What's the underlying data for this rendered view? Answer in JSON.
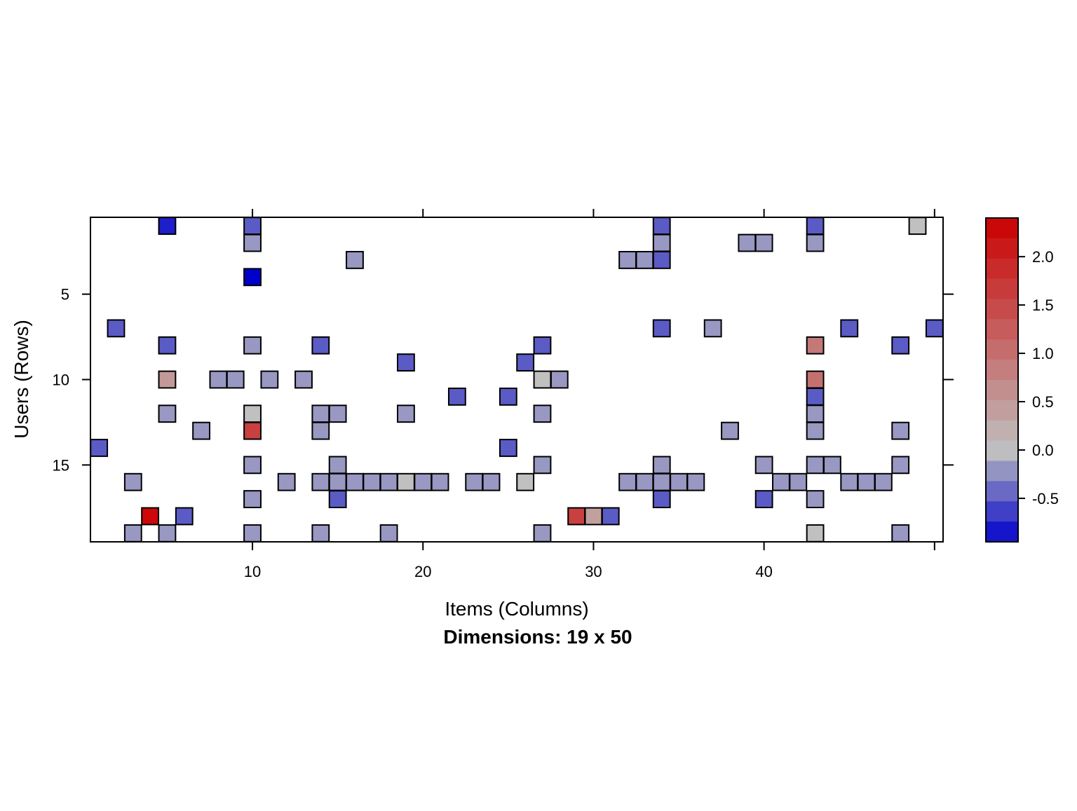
{
  "chart_data": {
    "type": "heatmap",
    "title": "Dimensions: 19 x 50",
    "xlabel": "Items (Columns)",
    "ylabel": "Users (Rows)",
    "n_rows": 19,
    "n_cols": 50,
    "x_ticks": [
      10,
      20,
      30,
      40
    ],
    "y_ticks": [
      5,
      10,
      15
    ],
    "x_tick_labels": [
      "10",
      "20",
      "30",
      "40"
    ],
    "y_tick_labels": [
      "5",
      "10",
      "15"
    ],
    "grid": false,
    "legend_position": "right",
    "colorbar": {
      "range": [
        -0.95,
        2.4
      ],
      "ticks": [
        2.0,
        1.5,
        1.0,
        0.5,
        0.0,
        -0.5
      ],
      "tick_labels": [
        "2.0",
        "1.5",
        "1.0",
        "0.5",
        "0.0",
        "-0.5"
      ],
      "low_color": "#0000cc",
      "mid_color": "#c0c0c0",
      "high_color": "#cc0000"
    },
    "cells": [
      {
        "row": 1,
        "col": 5,
        "value": -0.8
      },
      {
        "row": 1,
        "col": 10,
        "value": -0.5
      },
      {
        "row": 1,
        "col": 34,
        "value": -0.5
      },
      {
        "row": 1,
        "col": 43,
        "value": -0.5
      },
      {
        "row": 1,
        "col": 49,
        "value": 0.0
      },
      {
        "row": 2,
        "col": 10,
        "value": -0.2
      },
      {
        "row": 2,
        "col": 34,
        "value": -0.2
      },
      {
        "row": 2,
        "col": 39,
        "value": -0.2
      },
      {
        "row": 2,
        "col": 40,
        "value": -0.2
      },
      {
        "row": 2,
        "col": 43,
        "value": -0.2
      },
      {
        "row": 3,
        "col": 16,
        "value": -0.2
      },
      {
        "row": 3,
        "col": 32,
        "value": -0.2
      },
      {
        "row": 3,
        "col": 33,
        "value": -0.2
      },
      {
        "row": 3,
        "col": 34,
        "value": -0.5
      },
      {
        "row": 4,
        "col": 10,
        "value": -0.95
      },
      {
        "row": 7,
        "col": 2,
        "value": -0.5
      },
      {
        "row": 7,
        "col": 34,
        "value": -0.5
      },
      {
        "row": 7,
        "col": 37,
        "value": -0.2
      },
      {
        "row": 7,
        "col": 45,
        "value": -0.5
      },
      {
        "row": 7,
        "col": 50,
        "value": -0.5
      },
      {
        "row": 8,
        "col": 5,
        "value": -0.5
      },
      {
        "row": 8,
        "col": 10,
        "value": -0.2
      },
      {
        "row": 8,
        "col": 14,
        "value": -0.5
      },
      {
        "row": 8,
        "col": 27,
        "value": -0.5
      },
      {
        "row": 8,
        "col": 43,
        "value": 0.9
      },
      {
        "row": 8,
        "col": 48,
        "value": -0.5
      },
      {
        "row": 9,
        "col": 19,
        "value": -0.5
      },
      {
        "row": 9,
        "col": 26,
        "value": -0.5
      },
      {
        "row": 10,
        "col": 5,
        "value": 0.5
      },
      {
        "row": 10,
        "col": 8,
        "value": -0.2
      },
      {
        "row": 10,
        "col": 9,
        "value": -0.2
      },
      {
        "row": 10,
        "col": 11,
        "value": -0.2
      },
      {
        "row": 10,
        "col": 13,
        "value": -0.2
      },
      {
        "row": 10,
        "col": 27,
        "value": 0.0
      },
      {
        "row": 10,
        "col": 28,
        "value": -0.2
      },
      {
        "row": 10,
        "col": 43,
        "value": 1.0
      },
      {
        "row": 11,
        "col": 22,
        "value": -0.5
      },
      {
        "row": 11,
        "col": 25,
        "value": -0.5
      },
      {
        "row": 11,
        "col": 43,
        "value": -0.5
      },
      {
        "row": 12,
        "col": 5,
        "value": -0.2
      },
      {
        "row": 12,
        "col": 10,
        "value": 0.0
      },
      {
        "row": 12,
        "col": 14,
        "value": -0.2
      },
      {
        "row": 12,
        "col": 15,
        "value": -0.2
      },
      {
        "row": 12,
        "col": 19,
        "value": -0.2
      },
      {
        "row": 12,
        "col": 27,
        "value": -0.2
      },
      {
        "row": 12,
        "col": 43,
        "value": -0.2
      },
      {
        "row": 13,
        "col": 7,
        "value": -0.2
      },
      {
        "row": 13,
        "col": 10,
        "value": 1.6
      },
      {
        "row": 13,
        "col": 14,
        "value": -0.2
      },
      {
        "row": 13,
        "col": 38,
        "value": -0.2
      },
      {
        "row": 13,
        "col": 43,
        "value": -0.2
      },
      {
        "row": 13,
        "col": 48,
        "value": -0.2
      },
      {
        "row": 14,
        "col": 1,
        "value": -0.5
      },
      {
        "row": 14,
        "col": 25,
        "value": -0.5
      },
      {
        "row": 15,
        "col": 10,
        "value": -0.2
      },
      {
        "row": 15,
        "col": 15,
        "value": -0.2
      },
      {
        "row": 15,
        "col": 27,
        "value": -0.2
      },
      {
        "row": 15,
        "col": 34,
        "value": -0.2
      },
      {
        "row": 15,
        "col": 40,
        "value": -0.2
      },
      {
        "row": 15,
        "col": 43,
        "value": -0.2
      },
      {
        "row": 15,
        "col": 44,
        "value": -0.2
      },
      {
        "row": 15,
        "col": 48,
        "value": -0.2
      },
      {
        "row": 16,
        "col": 3,
        "value": -0.2
      },
      {
        "row": 16,
        "col": 12,
        "value": -0.2
      },
      {
        "row": 16,
        "col": 14,
        "value": -0.2
      },
      {
        "row": 16,
        "col": 15,
        "value": -0.2
      },
      {
        "row": 16,
        "col": 16,
        "value": -0.2
      },
      {
        "row": 16,
        "col": 17,
        "value": -0.2
      },
      {
        "row": 16,
        "col": 18,
        "value": -0.2
      },
      {
        "row": 16,
        "col": 19,
        "value": 0.0
      },
      {
        "row": 16,
        "col": 20,
        "value": -0.2
      },
      {
        "row": 16,
        "col": 21,
        "value": -0.2
      },
      {
        "row": 16,
        "col": 23,
        "value": -0.2
      },
      {
        "row": 16,
        "col": 24,
        "value": -0.2
      },
      {
        "row": 16,
        "col": 26,
        "value": 0.0
      },
      {
        "row": 16,
        "col": 32,
        "value": -0.2
      },
      {
        "row": 16,
        "col": 33,
        "value": -0.2
      },
      {
        "row": 16,
        "col": 34,
        "value": -0.2
      },
      {
        "row": 16,
        "col": 35,
        "value": -0.2
      },
      {
        "row": 16,
        "col": 36,
        "value": -0.2
      },
      {
        "row": 16,
        "col": 41,
        "value": -0.2
      },
      {
        "row": 16,
        "col": 42,
        "value": -0.2
      },
      {
        "row": 16,
        "col": 45,
        "value": -0.2
      },
      {
        "row": 16,
        "col": 46,
        "value": -0.2
      },
      {
        "row": 16,
        "col": 47,
        "value": -0.2
      },
      {
        "row": 17,
        "col": 10,
        "value": -0.2
      },
      {
        "row": 17,
        "col": 15,
        "value": -0.5
      },
      {
        "row": 17,
        "col": 34,
        "value": -0.5
      },
      {
        "row": 17,
        "col": 40,
        "value": -0.5
      },
      {
        "row": 17,
        "col": 43,
        "value": -0.2
      },
      {
        "row": 18,
        "col": 4,
        "value": 2.3
      },
      {
        "row": 18,
        "col": 6,
        "value": -0.5
      },
      {
        "row": 18,
        "col": 29,
        "value": 1.6
      },
      {
        "row": 18,
        "col": 30,
        "value": 0.4
      },
      {
        "row": 18,
        "col": 31,
        "value": -0.5
      },
      {
        "row": 19,
        "col": 3,
        "value": -0.2
      },
      {
        "row": 19,
        "col": 5,
        "value": -0.2
      },
      {
        "row": 19,
        "col": 10,
        "value": -0.2
      },
      {
        "row": 19,
        "col": 14,
        "value": -0.2
      },
      {
        "row": 19,
        "col": 18,
        "value": -0.2
      },
      {
        "row": 19,
        "col": 27,
        "value": -0.2
      },
      {
        "row": 19,
        "col": 43,
        "value": 0.0
      },
      {
        "row": 19,
        "col": 48,
        "value": -0.2
      }
    ]
  }
}
